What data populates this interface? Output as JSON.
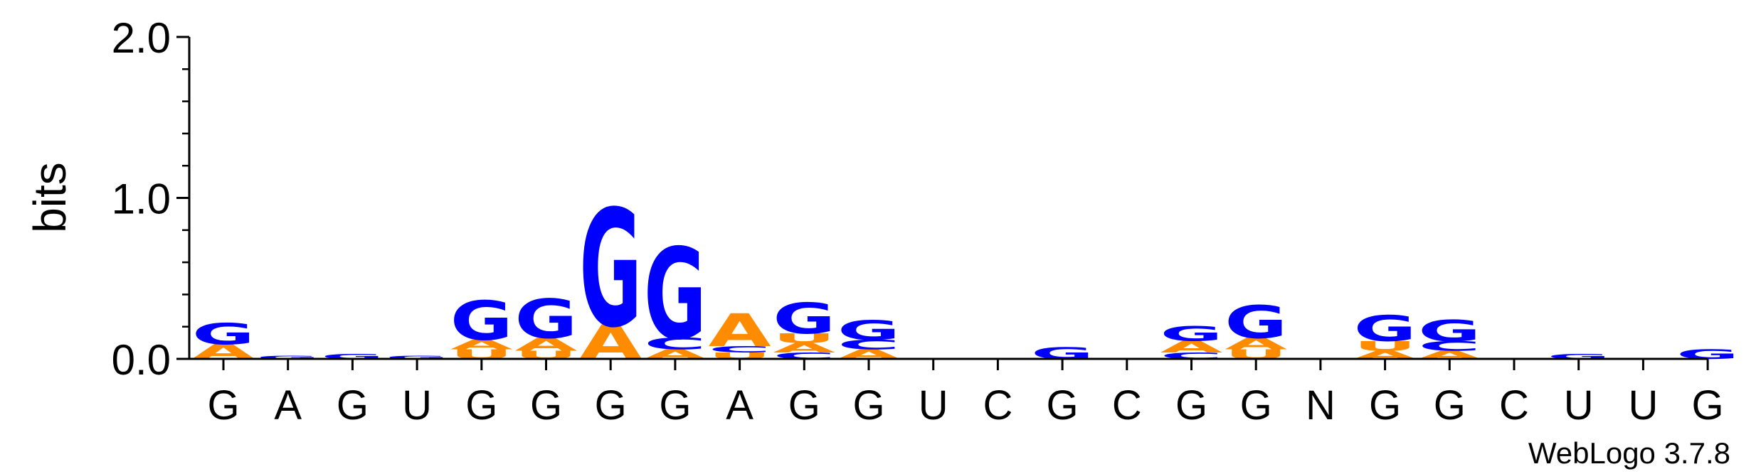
{
  "chart_data": {
    "type": "sequence-logo",
    "ylabel": "bits",
    "ylim": [
      0,
      2.0
    ],
    "yticks": [
      "0.0",
      "1.0",
      "2.0"
    ],
    "footer": "WebLogo 3.7.8",
    "colors": {
      "A": "#ff8c00",
      "U": "#ff8c00",
      "G": "#0000ff",
      "C": "#0000ff",
      "N": "#0000ff"
    },
    "positions": [
      {
        "label": "G",
        "stack": [
          [
            "A",
            0.09
          ],
          [
            "G",
            0.13
          ]
        ]
      },
      {
        "label": "A",
        "stack": [
          [
            "G",
            0.02
          ]
        ]
      },
      {
        "label": "G",
        "stack": [
          [
            "G",
            0.03
          ]
        ]
      },
      {
        "label": "U",
        "stack": [
          [
            "G",
            0.02
          ]
        ]
      },
      {
        "label": "G",
        "stack": [
          [
            "U",
            0.06
          ],
          [
            "A",
            0.06
          ],
          [
            "G",
            0.24
          ]
        ]
      },
      {
        "label": "G",
        "stack": [
          [
            "U",
            0.05
          ],
          [
            "A",
            0.08
          ],
          [
            "G",
            0.24
          ]
        ]
      },
      {
        "label": "G",
        "stack": [
          [
            "A",
            0.21
          ],
          [
            "G",
            0.72
          ]
        ]
      },
      {
        "label": "G",
        "stack": [
          [
            "A",
            0.06
          ],
          [
            "C",
            0.07
          ],
          [
            "G",
            0.56
          ]
        ]
      },
      {
        "label": "A",
        "stack": [
          [
            "U",
            0.04
          ],
          [
            "C",
            0.04
          ],
          [
            "A",
            0.2
          ]
        ]
      },
      {
        "label": "G",
        "stack": [
          [
            "C",
            0.04
          ],
          [
            "A",
            0.06
          ],
          [
            "U",
            0.06
          ],
          [
            "G",
            0.19
          ]
        ]
      },
      {
        "label": "G",
        "stack": [
          [
            "A",
            0.06
          ],
          [
            "C",
            0.06
          ],
          [
            "G",
            0.12
          ]
        ]
      },
      {
        "label": "U",
        "stack": []
      },
      {
        "label": "C",
        "stack": []
      },
      {
        "label": "G",
        "stack": [
          [
            "G",
            0.07
          ]
        ]
      },
      {
        "label": "C",
        "stack": []
      },
      {
        "label": "G",
        "stack": [
          [
            "C",
            0.04
          ],
          [
            "A",
            0.07
          ],
          [
            "G",
            0.09
          ]
        ]
      },
      {
        "label": "G",
        "stack": [
          [
            "U",
            0.06
          ],
          [
            "A",
            0.07
          ],
          [
            "G",
            0.2
          ]
        ]
      },
      {
        "label": "N",
        "stack": []
      },
      {
        "label": "G",
        "stack": [
          [
            "A",
            0.05
          ],
          [
            "U",
            0.06
          ],
          [
            "G",
            0.16
          ]
        ]
      },
      {
        "label": "G",
        "stack": [
          [
            "A",
            0.05
          ],
          [
            "C",
            0.06
          ],
          [
            "G",
            0.13
          ]
        ]
      },
      {
        "label": "C",
        "stack": []
      },
      {
        "label": "U",
        "stack": [
          [
            "G",
            0.03
          ]
        ]
      },
      {
        "label": "U",
        "stack": []
      },
      {
        "label": "G",
        "stack": [
          [
            "G",
            0.06
          ]
        ]
      }
    ]
  }
}
